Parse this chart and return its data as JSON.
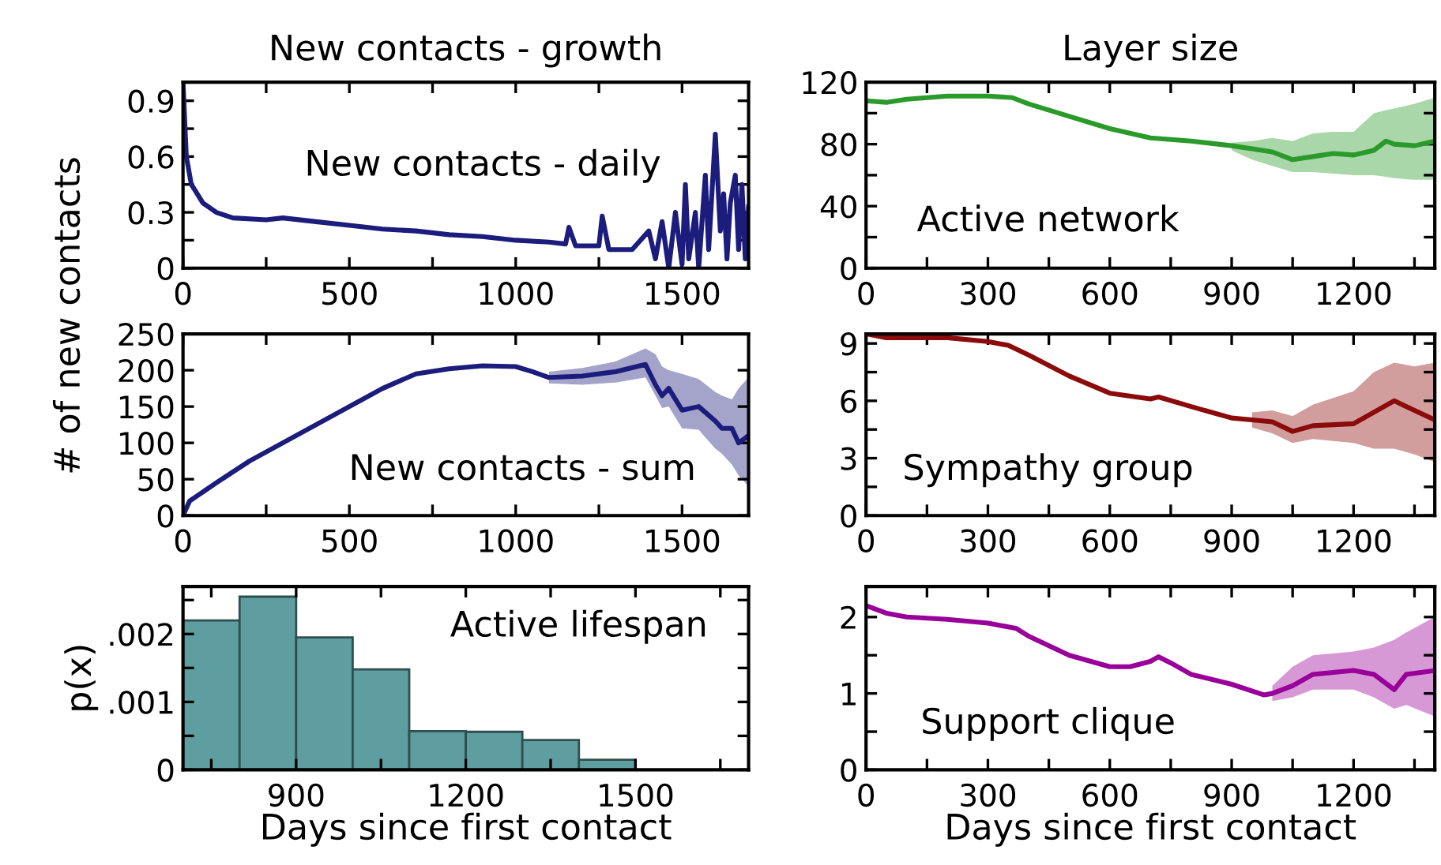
{
  "chart_data": [
    {
      "type": "line",
      "title": "New contacts - growth",
      "annotations": [
        "New contacts - daily"
      ],
      "xlim": [
        0,
        1700
      ],
      "ylim": [
        0,
        1.0
      ],
      "xticks": [
        0,
        {
          "value": 250,
          "label": null
        },
        500,
        {
          "value": 750,
          "label": null
        },
        1000,
        {
          "value": 1250,
          "label": null
        },
        1500
      ],
      "yticks": [
        0,
        {
          "value": 0.15,
          "label": null
        },
        0.3,
        {
          "value": 0.45,
          "label": null
        },
        0.6,
        {
          "value": 0.75,
          "label": null
        },
        0.9
      ],
      "grid": false,
      "legend": false,
      "line_style": "solid",
      "marker": "none",
      "series": [
        {
          "color": "#1c1c7c",
          "x": [
            0,
            10,
            25,
            60,
            100,
            150,
            250,
            300,
            400,
            500,
            600,
            700,
            800,
            900,
            1000,
            1100,
            1150,
            1160,
            1180,
            1250,
            1260,
            1280,
            1350,
            1400,
            1420,
            1440,
            1460,
            1480,
            1500,
            1510,
            1520,
            1540,
            1550,
            1570,
            1580,
            1600,
            1615,
            1625,
            1635,
            1645,
            1660,
            1670,
            1680,
            1690,
            1700
          ],
          "values": [
            1.0,
            0.6,
            0.45,
            0.35,
            0.3,
            0.27,
            0.26,
            0.27,
            0.25,
            0.23,
            0.21,
            0.2,
            0.18,
            0.17,
            0.15,
            0.14,
            0.13,
            0.22,
            0.12,
            0.12,
            0.28,
            0.1,
            0.1,
            0.2,
            0.05,
            0.25,
            0.0,
            0.3,
            0.02,
            0.45,
            0.05,
            0.3,
            0.0,
            0.5,
            0.1,
            0.72,
            0.2,
            0.4,
            0.05,
            0.35,
            0.5,
            0.1,
            0.45,
            0.05,
            0.33
          ]
        }
      ]
    },
    {
      "type": "line",
      "title": "Layer size",
      "annotations": [
        "Active network"
      ],
      "xlim": [
        0,
        1400
      ],
      "ylim": [
        0,
        120
      ],
      "xticks": [
        0,
        {
          "value": 150,
          "label": null
        },
        300,
        {
          "value": 450,
          "label": null
        },
        600,
        {
          "value": 750,
          "label": null
        },
        900,
        {
          "value": 1050,
          "label": null
        },
        1200,
        {
          "value": 1350,
          "label": null
        }
      ],
      "yticks": [
        0,
        {
          "value": 20,
          "label": null
        },
        40,
        {
          "value": 60,
          "label": null
        },
        80,
        {
          "value": 100,
          "label": null
        },
        120
      ],
      "grid": false,
      "legend": false,
      "line_style": "solid",
      "marker": "none",
      "series": [
        {
          "color": "#2a9a2a",
          "x": [
            0,
            50,
            100,
            200,
            300,
            360,
            400,
            500,
            600,
            700,
            800,
            900,
            950,
            1000,
            1050,
            1100,
            1150,
            1200,
            1250,
            1280,
            1300,
            1350,
            1400
          ],
          "values": [
            108,
            107,
            109,
            111,
            111,
            110,
            106,
            98,
            90,
            84,
            82,
            79,
            77,
            75,
            70,
            72,
            74,
            73,
            76,
            82,
            80,
            79,
            82
          ],
          "lower": [
            null,
            null,
            null,
            null,
            null,
            null,
            null,
            null,
            null,
            null,
            null,
            76,
            70,
            66,
            62,
            62,
            61,
            60,
            60,
            59,
            58,
            57,
            57
          ],
          "upper": [
            null,
            null,
            null,
            null,
            null,
            null,
            null,
            null,
            null,
            null,
            null,
            81,
            82,
            84,
            82,
            87,
            88,
            88,
            100,
            102,
            103,
            106,
            110
          ]
        }
      ]
    },
    {
      "type": "line",
      "ylabel": "# of new contacts",
      "annotations": [
        "New contacts - sum"
      ],
      "xlim": [
        0,
        1700
      ],
      "ylim": [
        0,
        250
      ],
      "xticks": [
        0,
        {
          "value": 250,
          "label": null
        },
        500,
        {
          "value": 750,
          "label": null
        },
        1000,
        {
          "value": 1250,
          "label": null
        },
        1500
      ],
      "yticks": [
        0,
        50,
        100,
        150,
        200,
        250
      ],
      "grid": false,
      "legend": false,
      "line_style": "solid",
      "marker": "none",
      "series": [
        {
          "color": "#1c1c7c",
          "x": [
            0,
            20,
            100,
            200,
            300,
            400,
            500,
            600,
            700,
            800,
            900,
            1000,
            1050,
            1100,
            1200,
            1300,
            1390,
            1420,
            1440,
            1460,
            1500,
            1550,
            1600,
            1620,
            1650,
            1670,
            1700
          ],
          "values": [
            0,
            20,
            45,
            75,
            100,
            125,
            150,
            175,
            195,
            202,
            206,
            205,
            198,
            190,
            192,
            198,
            208,
            180,
            165,
            175,
            145,
            150,
            130,
            120,
            120,
            100,
            110
          ],
          "lower": [
            null,
            null,
            null,
            null,
            null,
            null,
            null,
            null,
            null,
            null,
            null,
            null,
            null,
            182,
            180,
            183,
            190,
            165,
            148,
            150,
            120,
            118,
            92,
            85,
            70,
            55,
            40
          ],
          "upper": [
            null,
            null,
            null,
            null,
            null,
            null,
            null,
            null,
            null,
            null,
            null,
            null,
            null,
            198,
            203,
            212,
            230,
            222,
            205,
            200,
            195,
            188,
            170,
            165,
            160,
            175,
            190
          ]
        }
      ]
    },
    {
      "type": "line",
      "annotations": [
        "Sympathy group"
      ],
      "xlim": [
        0,
        1400
      ],
      "ylim": [
        0,
        9.5
      ],
      "xticks": [
        0,
        {
          "value": 150,
          "label": null
        },
        300,
        {
          "value": 450,
          "label": null
        },
        600,
        {
          "value": 750,
          "label": null
        },
        900,
        {
          "value": 1050,
          "label": null
        },
        1200,
        {
          "value": 1350,
          "label": null
        }
      ],
      "yticks": [
        0,
        {
          "value": 1.5,
          "label": null
        },
        3,
        {
          "value": 4.5,
          "label": null
        },
        6,
        {
          "value": 7.5,
          "label": null
        },
        9
      ],
      "grid": false,
      "legend": false,
      "line_style": "solid",
      "marker": "none",
      "series": [
        {
          "color": "#8b0a0a",
          "x": [
            0,
            50,
            200,
            300,
            350,
            400,
            500,
            600,
            700,
            720,
            800,
            900,
            950,
            1000,
            1050,
            1100,
            1200,
            1250,
            1300,
            1350,
            1400
          ],
          "values": [
            9.5,
            9.3,
            9.3,
            9.1,
            8.9,
            8.4,
            7.3,
            6.4,
            6.1,
            6.2,
            5.7,
            5.1,
            5.0,
            4.9,
            4.4,
            4.7,
            4.8,
            5.4,
            6.0,
            5.5,
            5.0
          ],
          "lower": [
            null,
            null,
            null,
            null,
            null,
            null,
            null,
            null,
            null,
            null,
            null,
            null,
            4.6,
            4.3,
            3.8,
            4.0,
            3.8,
            3.5,
            3.5,
            3.2,
            2.8
          ],
          "upper": [
            null,
            null,
            null,
            null,
            null,
            null,
            null,
            null,
            null,
            null,
            null,
            null,
            5.4,
            5.5,
            5.2,
            5.8,
            6.5,
            7.5,
            8.0,
            7.8,
            8.0
          ]
        }
      ]
    },
    {
      "type": "histogram",
      "ylabel": "p(x)",
      "xlabel": "Days since first contact",
      "annotations": [
        "Active lifespan"
      ],
      "color": "#5f9ea0",
      "bins": [
        700,
        800,
        900,
        1000,
        1100,
        1200,
        1300,
        1400,
        1500
      ],
      "values": [
        0.0022,
        0.00255,
        0.00195,
        0.00148,
        0.00057,
        0.00056,
        0.00044,
        0.00015
      ],
      "xlim": [
        700,
        1700
      ],
      "ylim": [
        0,
        0.0027
      ],
      "xticks": [
        {
          "value": 750,
          "label": null
        },
        900,
        {
          "value": 1050,
          "label": null
        },
        1200,
        {
          "value": 1350,
          "label": null
        },
        1500,
        {
          "value": 1650,
          "label": null
        }
      ],
      "yticks": [
        0,
        {
          "value": 0.0005,
          "label": null
        },
        {
          "value": 0.001,
          "label": ".001"
        },
        {
          "value": 0.0015,
          "label": null
        },
        {
          "value": 0.002,
          "label": ".002"
        },
        {
          "value": 0.0025,
          "label": null
        }
      ],
      "grid": false,
      "legend": false
    },
    {
      "type": "line",
      "xlabel": "Days since first contact",
      "annotations": [
        "Support clique"
      ],
      "xlim": [
        0,
        1400
      ],
      "ylim": [
        0,
        2.4
      ],
      "xticks": [
        0,
        {
          "value": 150,
          "label": null
        },
        300,
        {
          "value": 450,
          "label": null
        },
        600,
        {
          "value": 750,
          "label": null
        },
        900,
        {
          "value": 1050,
          "label": null
        },
        1200,
        {
          "value": 1350,
          "label": null
        }
      ],
      "yticks": [
        0,
        {
          "value": 0.5,
          "label": null
        },
        1,
        {
          "value": 1.5,
          "label": null
        },
        2
      ],
      "grid": false,
      "legend": false,
      "line_style": "solid",
      "marker": "none",
      "series": [
        {
          "color": "#990099",
          "x": [
            0,
            50,
            100,
            200,
            300,
            370,
            400,
            500,
            600,
            650,
            700,
            720,
            750,
            800,
            900,
            980,
            1000,
            1050,
            1100,
            1200,
            1250,
            1300,
            1330,
            1400
          ],
          "values": [
            2.15,
            2.05,
            2.0,
            1.97,
            1.92,
            1.85,
            1.75,
            1.5,
            1.35,
            1.35,
            1.42,
            1.48,
            1.4,
            1.25,
            1.12,
            0.98,
            1.0,
            1.1,
            1.25,
            1.3,
            1.25,
            1.05,
            1.25,
            1.3
          ],
          "lower": [
            null,
            null,
            null,
            null,
            null,
            null,
            null,
            null,
            null,
            null,
            null,
            null,
            null,
            null,
            null,
            null,
            0.9,
            0.95,
            1.05,
            1.05,
            0.95,
            0.8,
            0.85,
            0.7
          ],
          "upper": [
            null,
            null,
            null,
            null,
            null,
            null,
            null,
            null,
            null,
            null,
            null,
            null,
            null,
            null,
            null,
            null,
            1.1,
            1.35,
            1.5,
            1.55,
            1.6,
            1.7,
            1.8,
            2.0
          ]
        }
      ]
    }
  ]
}
